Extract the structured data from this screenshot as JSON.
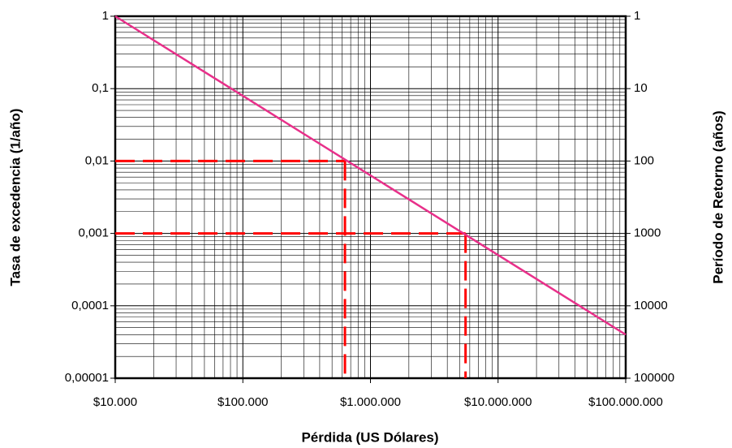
{
  "chart_data": {
    "type": "line",
    "xlabel": "Pérdida (US Dólares)",
    "ylabel": "Tasa de excedencia (1/año)",
    "y2label": "Período de Retorno (años)",
    "log_x": true,
    "log_y": true,
    "grid": "minor",
    "xlim": [
      10000,
      100000000
    ],
    "xticks": [
      {
        "value": 10000,
        "label": "$10.000"
      },
      {
        "value": 100000,
        "label": "$100.000"
      },
      {
        "value": 1000000,
        "label": "$1.000.000"
      },
      {
        "value": 10000000,
        "label": "$10.000.000"
      },
      {
        "value": 100000000,
        "label": "$100.000.000"
      }
    ],
    "ylim": [
      1e-05,
      1
    ],
    "yticks": [
      {
        "value": 1e-05,
        "label": "0,00001"
      },
      {
        "value": 0.0001,
        "label": "0,0001"
      },
      {
        "value": 0.001,
        "label": "0,001"
      },
      {
        "value": 0.01,
        "label": "0,01"
      },
      {
        "value": 0.1,
        "label": "0,1"
      },
      1
    ],
    "y2lim": [
      1,
      100000
    ],
    "y2_reversed": true,
    "y2ticks": [
      1,
      10,
      100,
      1000,
      10000,
      100000
    ],
    "series": [
      {
        "color": "#e8308a",
        "x": [
          10000,
          100000000
        ],
        "values": [
          1,
          4e-05
        ]
      }
    ],
    "reference_lines": [
      {
        "x": 631000,
        "y": 0.01
      },
      {
        "x": 5560000,
        "y": 0.001
      }
    ],
    "reference_color": "#ff0000"
  }
}
